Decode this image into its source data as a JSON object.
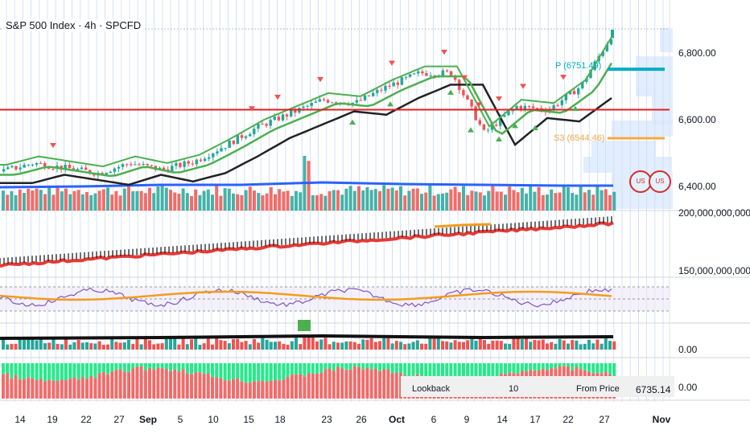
{
  "header": {
    "title": "S&P 500 Index · 4h · SPCFD"
  },
  "colors": {
    "up": "#26a69a",
    "down": "#ef5350",
    "ma_green": "#4caf50",
    "ma_black": "#222222",
    "red_line": "#e02020",
    "pivot_cyan": "#00acc1",
    "pivot_orange": "#f5a742",
    "rsi": "#7e57c2",
    "rsi_ma": "#f59b1c",
    "cum": "#e53935"
  },
  "price_axis": {
    "labels": [
      "6,800.00",
      "6,600.00",
      "6,400.00"
    ]
  },
  "indicator_axis": {
    "labels": [
      "200,000,000,000.00",
      "150,000,000,000.00",
      "0.00",
      "0.00"
    ]
  },
  "table_labels": [
    "Lookback",
    "10",
    "From Price",
    "6735.14"
  ],
  "pivot_labels": {
    "p": "P (6751.49)",
    "s3": "S3 (6544.46)"
  },
  "badge_text": "US",
  "x_labels": [
    {
      "text": "14",
      "month": false
    },
    {
      "text": "19",
      "month": false
    },
    {
      "text": "22",
      "month": false
    },
    {
      "text": "27",
      "month": false
    },
    {
      "text": "Sep",
      "month": true
    },
    {
      "text": "5",
      "month": false
    },
    {
      "text": "10",
      "month": false
    },
    {
      "text": "15",
      "month": false
    },
    {
      "text": "18",
      "month": false
    },
    {
      "text": "23",
      "month": false
    },
    {
      "text": "26",
      "month": false
    },
    {
      "text": "Oct",
      "month": true
    },
    {
      "text": "6",
      "month": false
    },
    {
      "text": "9",
      "month": false
    },
    {
      "text": "14",
      "month": false
    },
    {
      "text": "17",
      "month": false
    },
    {
      "text": "22",
      "month": false
    },
    {
      "text": "27",
      "month": false
    },
    {
      "text": "Nov",
      "month": true
    }
  ],
  "chart_data": {
    "type": "line",
    "timeframe": "4h",
    "price_levels": {
      "red_horizontal": 6630,
      "pivot_p": 6751.49,
      "pivot_s3": 6544.46
    },
    "price_series": [
      {
        "x": "Aug 12",
        "close": 6445
      },
      {
        "x": "Aug 14",
        "close": 6470
      },
      {
        "x": "Aug 19",
        "close": 6455
      },
      {
        "x": "Aug 22",
        "close": 6440
      },
      {
        "x": "Aug 27",
        "close": 6470
      },
      {
        "x": "Sep 1",
        "close": 6450
      },
      {
        "x": "Sep 5",
        "close": 6475
      },
      {
        "x": "Sep 10",
        "close": 6525
      },
      {
        "x": "Sep 15",
        "close": 6580
      },
      {
        "x": "Sep 18",
        "close": 6620
      },
      {
        "x": "Sep 23",
        "close": 6660
      },
      {
        "x": "Sep 26",
        "close": 6650
      },
      {
        "x": "Oct 1",
        "close": 6700
      },
      {
        "x": "Oct 6",
        "close": 6740
      },
      {
        "x": "Oct 9",
        "close": 6740
      },
      {
        "x": "Oct 10",
        "close": 6560
      },
      {
        "x": "Oct 14",
        "close": 6640
      },
      {
        "x": "Oct 17",
        "close": 6630
      },
      {
        "x": "Oct 22",
        "close": 6700
      },
      {
        "x": "Oct 27",
        "close": 6860
      }
    ],
    "cumulative_volume_range": [
      120000000000,
      200000000000
    ],
    "rsi_bands": [
      30,
      50,
      70
    ]
  }
}
